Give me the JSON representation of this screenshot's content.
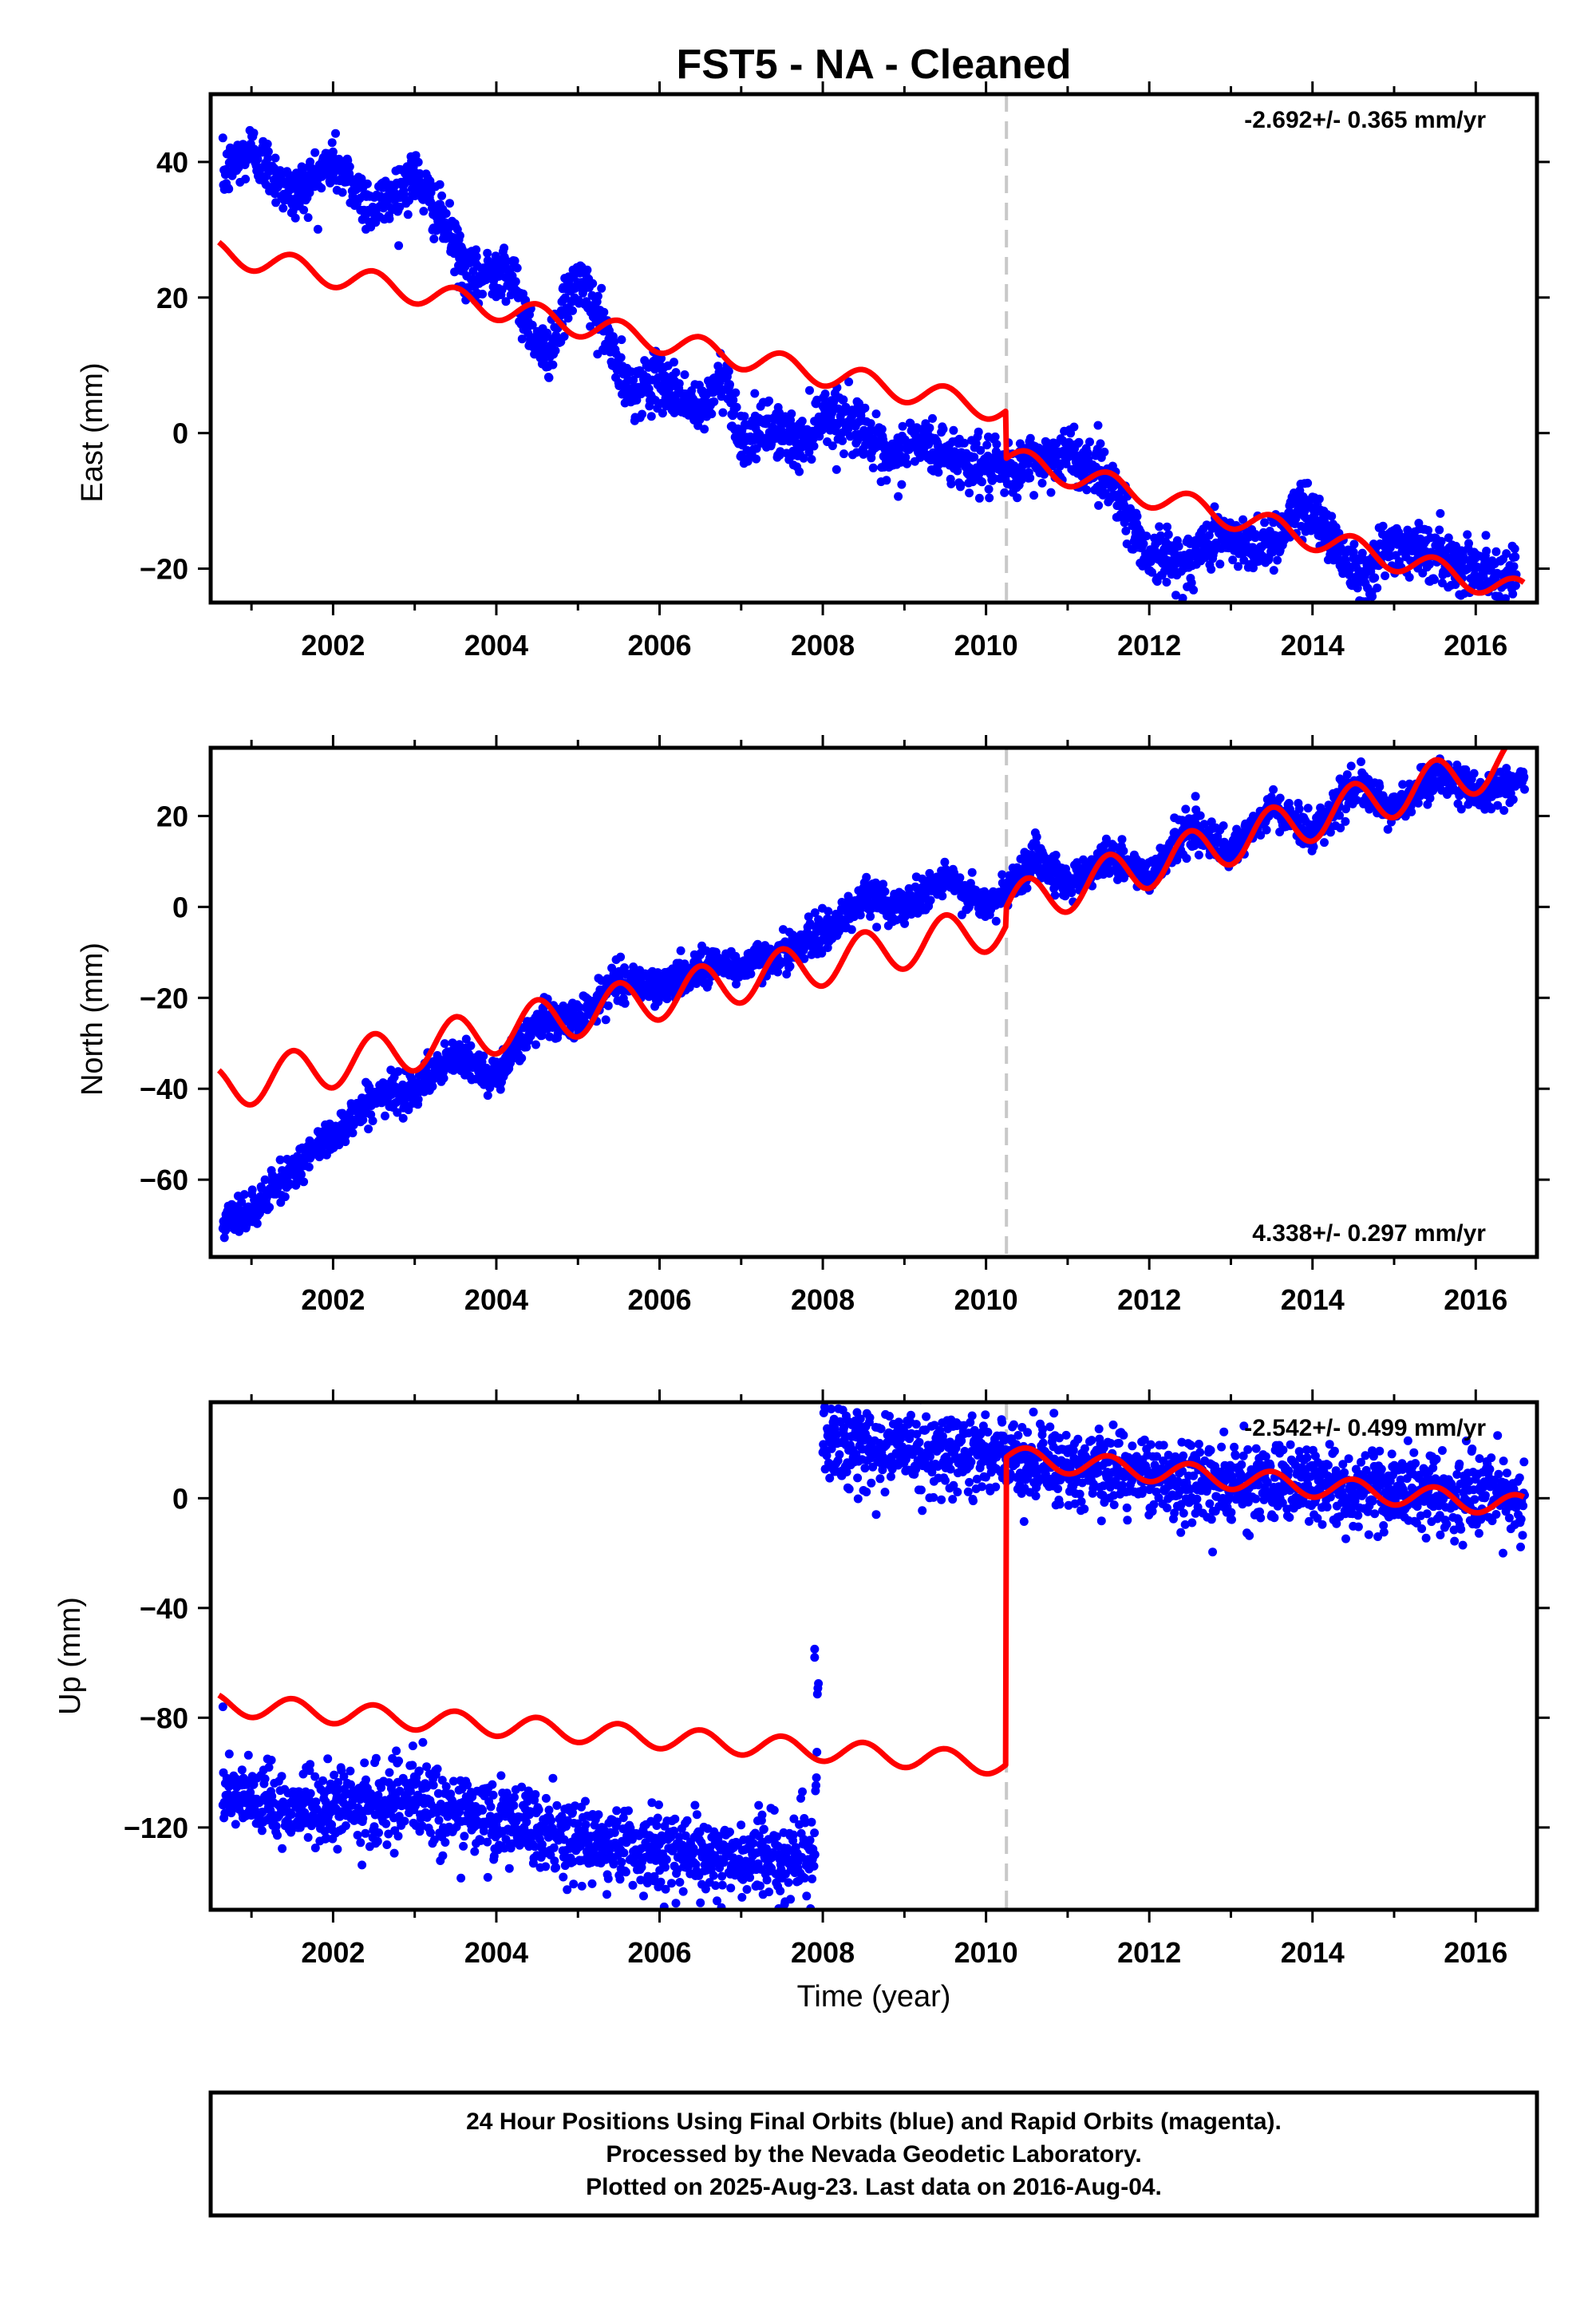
{
  "title": "FST5  - NA - Cleaned",
  "xlabel": "Time (year)",
  "x_ticks": [
    2002,
    2004,
    2006,
    2008,
    2010,
    2012,
    2014,
    2016
  ],
  "colors": {
    "final_orbits": "#0000ff",
    "model": "#ff0000",
    "break_line": "#c8c8c8",
    "frame": "#000000"
  },
  "footer": {
    "line1": "24 Hour Positions Using Final Orbits (blue) and Rapid Orbits (magenta).",
    "line2": "Processed by the Nevada Geodetic Laboratory.",
    "line3": "Plotted on 2025-Aug-23. Last data on 2016-Aug-04."
  },
  "chart_data": [
    {
      "type": "scatter",
      "ylabel": "East (mm)",
      "rate_text": "-2.692+/- 0.365 mm/yr",
      "rate_position": "top-right",
      "xlim": [
        2000.5,
        2016.75
      ],
      "ylim": [
        -25,
        50
      ],
      "y_ticks": [
        -20,
        0,
        20,
        40
      ],
      "break_year": 2010.25,
      "grid": false,
      "observed_trend": [
        [
          2000.65,
          38
        ],
        [
          2001.0,
          42
        ],
        [
          2001.5,
          35
        ],
        [
          2002.0,
          40
        ],
        [
          2002.5,
          33
        ],
        [
          2003.0,
          38
        ],
        [
          2003.4,
          30
        ],
        [
          2003.7,
          22
        ],
        [
          2004.1,
          25
        ],
        [
          2004.4,
          16
        ],
        [
          2004.6,
          11
        ],
        [
          2005.0,
          23
        ],
        [
          2005.3,
          16
        ],
        [
          2005.6,
          6
        ],
        [
          2006.0,
          8
        ],
        [
          2006.5,
          3
        ],
        [
          2006.8,
          9
        ],
        [
          2007.0,
          -1
        ],
        [
          2007.4,
          1
        ],
        [
          2007.7,
          -2
        ],
        [
          2008.0,
          3
        ],
        [
          2008.5,
          1
        ],
        [
          2008.8,
          -5
        ],
        [
          2009.1,
          -1
        ],
        [
          2009.5,
          -3
        ],
        [
          2010.0,
          -5
        ],
        [
          2010.25,
          -6
        ],
        [
          2010.6,
          -4
        ],
        [
          2011.0,
          -3
        ],
        [
          2011.3,
          -5
        ],
        [
          2011.6,
          -8
        ],
        [
          2011.8,
          -14
        ],
        [
          2012.0,
          -18
        ],
        [
          2012.5,
          -19
        ],
        [
          2012.8,
          -15
        ],
        [
          2013.2,
          -17
        ],
        [
          2013.6,
          -15
        ],
        [
          2013.9,
          -10
        ],
        [
          2014.2,
          -15
        ],
        [
          2014.6,
          -21
        ],
        [
          2015.0,
          -16
        ],
        [
          2015.5,
          -18
        ],
        [
          2016.0,
          -20
        ],
        [
          2016.5,
          -21
        ]
      ],
      "model": {
        "type": "line",
        "start": [
          2000.6,
          26.7
        ],
        "break_year": 2010.25,
        "value_before_break": 3.3,
        "value_after_break": -3.7,
        "end": [
          2016.6,
          -23.6
        ],
        "annual_amplitude": 1.8
      }
    },
    {
      "type": "scatter",
      "ylabel": "North (mm)",
      "rate_text": "4.338+/- 0.297 mm/yr",
      "rate_position": "bottom-right",
      "xlim": [
        2000.5,
        2016.75
      ],
      "ylim": [
        -77,
        35
      ],
      "y_ticks": [
        -60,
        -40,
        -20,
        0,
        20
      ],
      "break_year": 2010.25,
      "grid": false,
      "observed_trend": [
        [
          2000.65,
          -70
        ],
        [
          2001.0,
          -67
        ],
        [
          2001.5,
          -58
        ],
        [
          2002.0,
          -50
        ],
        [
          2002.5,
          -42
        ],
        [
          2003.0,
          -40
        ],
        [
          2003.5,
          -33
        ],
        [
          2004.0,
          -37
        ],
        [
          2004.5,
          -25
        ],
        [
          2005.0,
          -25
        ],
        [
          2005.5,
          -16
        ],
        [
          2006.0,
          -18
        ],
        [
          2006.5,
          -13
        ],
        [
          2007.0,
          -13
        ],
        [
          2007.5,
          -10
        ],
        [
          2008.0,
          -6
        ],
        [
          2008.5,
          2
        ],
        [
          2009.0,
          0
        ],
        [
          2009.5,
          6
        ],
        [
          2010.0,
          0
        ],
        [
          2010.25,
          3
        ],
        [
          2010.6,
          12
        ],
        [
          2011.0,
          5
        ],
        [
          2011.5,
          11
        ],
        [
          2012.0,
          7
        ],
        [
          2012.5,
          18
        ],
        [
          2013.0,
          11
        ],
        [
          2013.5,
          22
        ],
        [
          2014.0,
          16
        ],
        [
          2014.5,
          27
        ],
        [
          2015.0,
          21
        ],
        [
          2015.5,
          29
        ],
        [
          2016.0,
          25
        ],
        [
          2016.6,
          28
        ]
      ],
      "model": {
        "type": "line",
        "start": [
          2000.6,
          -40
        ],
        "break_year": 2010.25,
        "value_before_break": -4,
        "value_after_break": 0,
        "end": [
          2016.6,
          33
        ],
        "annual_amplitude": 5
      }
    },
    {
      "type": "scatter",
      "ylabel": "Up (mm)",
      "xlabel": "Time (year)",
      "rate_text": "-2.542+/- 0.499 mm/yr",
      "rate_position": "top-right",
      "xlim": [
        2000.5,
        2016.75
      ],
      "ylim": [
        -150,
        35
      ],
      "y_ticks": [
        -120,
        -80,
        -40,
        0
      ],
      "break_year": 2010.25,
      "grid": false,
      "observed_trend": [
        [
          2000.65,
          -108
        ],
        [
          2001.0,
          -112
        ],
        [
          2002.0,
          -113
        ],
        [
          2003.0,
          -110
        ],
        [
          2004.0,
          -118
        ],
        [
          2005.0,
          -125
        ],
        [
          2006.0,
          -128
        ],
        [
          2007.0,
          -132
        ],
        [
          2007.9,
          -130
        ],
        [
          2008.0,
          20
        ],
        [
          2009.0,
          18
        ],
        [
          2010.0,
          16
        ],
        [
          2011.0,
          12
        ],
        [
          2012.0,
          8
        ],
        [
          2013.0,
          5
        ],
        [
          2014.0,
          5
        ],
        [
          2015.0,
          2
        ],
        [
          2016.0,
          0
        ],
        [
          2016.6,
          0
        ]
      ],
      "outliers": [
        [
          2000.65,
          -76
        ],
        [
          2003.1,
          -89
        ],
        [
          2007.9,
          -55
        ],
        [
          2007.9,
          -58
        ],
        [
          2007.75,
          -107
        ],
        [
          2014.8,
          -14
        ]
      ],
      "model": {
        "type": "line",
        "start": [
          2000.6,
          -75
        ],
        "break_year": 2010.25,
        "value_before_break": -97,
        "value_after_break": 15,
        "end": [
          2016.6,
          -3
        ],
        "annual_amplitude": 4
      }
    }
  ]
}
